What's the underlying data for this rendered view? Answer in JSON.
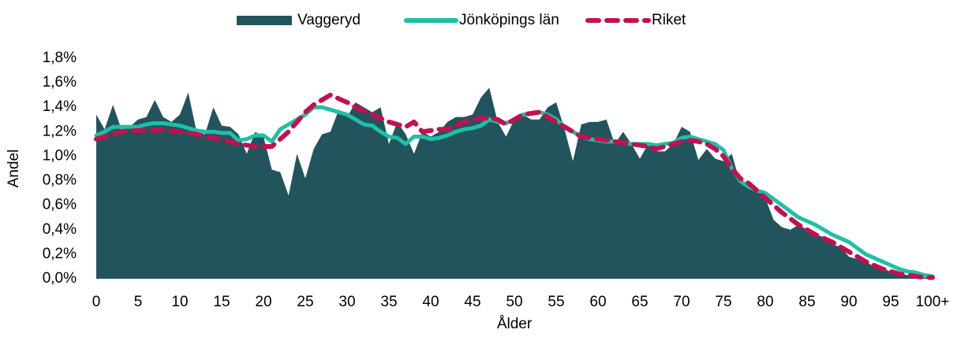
{
  "chart_data": {
    "type": "line",
    "xlabel": "Ålder",
    "ylabel": "Andel",
    "categories": [
      "0",
      null,
      null,
      null,
      null,
      "5",
      null,
      null,
      null,
      null,
      "10",
      null,
      null,
      null,
      null,
      "15",
      null,
      null,
      null,
      null,
      "20",
      null,
      null,
      null,
      null,
      "25",
      null,
      null,
      null,
      null,
      "30",
      null,
      null,
      null,
      null,
      "35",
      null,
      null,
      null,
      null,
      "40",
      null,
      null,
      null,
      null,
      "45",
      null,
      null,
      null,
      null,
      "50",
      null,
      null,
      null,
      null,
      "55",
      null,
      null,
      null,
      null,
      "60",
      null,
      null,
      null,
      null,
      "65",
      null,
      null,
      null,
      null,
      "70",
      null,
      null,
      null,
      null,
      "75",
      null,
      null,
      null,
      null,
      "80",
      null,
      null,
      null,
      null,
      "85",
      null,
      null,
      null,
      null,
      "90",
      null,
      null,
      null,
      null,
      "95",
      null,
      null,
      null,
      null,
      "100+"
    ],
    "ylim": [
      0,
      1.8
    ],
    "yticks": [
      {
        "value": 0,
        "label": "0,0%"
      },
      {
        "value": 0.2,
        "label": "0,2%"
      },
      {
        "value": 0.4,
        "label": "0,4%"
      },
      {
        "value": 0.6,
        "label": "0,6%"
      },
      {
        "value": 0.8,
        "label": "0,8%"
      },
      {
        "value": 1.0,
        "label": "1,0%"
      },
      {
        "value": 1.2,
        "label": "1,2%"
      },
      {
        "value": 1.4,
        "label": "1,4%"
      },
      {
        "value": 1.6,
        "label": "1,6%"
      },
      {
        "value": 1.8,
        "label": "1,8%"
      }
    ],
    "grid": false,
    "legend": "top",
    "series": [
      {
        "name": "Vaggeryd",
        "type": "area",
        "color": "#22545e",
        "values": [
          1.34,
          1.22,
          1.42,
          1.22,
          1.24,
          1.3,
          1.32,
          1.46,
          1.32,
          1.28,
          1.34,
          1.52,
          1.2,
          1.18,
          1.4,
          1.25,
          1.24,
          1.18,
          1.02,
          1.2,
          1.16,
          0.89,
          0.87,
          0.68,
          1.02,
          0.82,
          1.06,
          1.18,
          1.2,
          1.38,
          1.32,
          1.44,
          1.4,
          1.36,
          1.4,
          1.1,
          1.28,
          1.18,
          1.02,
          1.2,
          1.16,
          1.2,
          1.28,
          1.32,
          1.32,
          1.34,
          1.48,
          1.56,
          1.28,
          1.16,
          1.3,
          1.34,
          1.3,
          1.3,
          1.4,
          1.44,
          1.22,
          0.96,
          1.26,
          1.28,
          1.28,
          1.3,
          1.1,
          1.2,
          1.1,
          0.98,
          1.1,
          1.04,
          1.04,
          1.1,
          1.24,
          1.2,
          0.97,
          1.06,
          0.98,
          0.96,
          1.02,
          0.78,
          0.76,
          0.74,
          0.66,
          0.48,
          0.42,
          0.4,
          0.44,
          0.4,
          0.36,
          0.34,
          0.28,
          0.26,
          0.18,
          0.16,
          0.14,
          0.1,
          0.08,
          0.06,
          0.04,
          0.03,
          0.02,
          0.01,
          0.01
        ]
      },
      {
        "name": "Jönköpings län",
        "type": "line",
        "color": "#1fbfa8",
        "values": [
          1.17,
          1.2,
          1.24,
          1.24,
          1.24,
          1.24,
          1.26,
          1.27,
          1.27,
          1.26,
          1.25,
          1.23,
          1.21,
          1.2,
          1.2,
          1.19,
          1.19,
          1.13,
          1.14,
          1.17,
          1.17,
          1.12,
          1.22,
          1.26,
          1.3,
          1.34,
          1.4,
          1.4,
          1.38,
          1.36,
          1.34,
          1.3,
          1.26,
          1.25,
          1.2,
          1.16,
          1.15,
          1.1,
          1.16,
          1.16,
          1.14,
          1.15,
          1.17,
          1.2,
          1.22,
          1.23,
          1.25,
          1.3,
          1.28,
          1.27,
          1.3,
          1.34,
          1.35,
          1.36,
          1.34,
          1.3,
          1.24,
          1.2,
          1.16,
          1.14,
          1.13,
          1.12,
          1.12,
          1.11,
          1.1,
          1.1,
          1.1,
          1.09,
          1.1,
          1.11,
          1.15,
          1.16,
          1.14,
          1.12,
          1.1,
          1.05,
          0.9,
          0.8,
          0.75,
          0.72,
          0.7,
          0.65,
          0.6,
          0.55,
          0.5,
          0.47,
          0.44,
          0.4,
          0.36,
          0.33,
          0.3,
          0.25,
          0.2,
          0.17,
          0.14,
          0.11,
          0.08,
          0.06,
          0.05,
          0.03,
          0.02
        ]
      },
      {
        "name": "Riket",
        "type": "line",
        "style": "dashed",
        "color": "#c4104f",
        "values": [
          1.14,
          1.16,
          1.18,
          1.2,
          1.21,
          1.21,
          1.21,
          1.21,
          1.22,
          1.21,
          1.2,
          1.19,
          1.18,
          1.16,
          1.15,
          1.14,
          1.12,
          1.1,
          1.09,
          1.08,
          1.08,
          1.08,
          1.14,
          1.2,
          1.28,
          1.36,
          1.42,
          1.46,
          1.5,
          1.47,
          1.44,
          1.4,
          1.37,
          1.34,
          1.31,
          1.28,
          1.26,
          1.24,
          1.28,
          1.2,
          1.21,
          1.22,
          1.22,
          1.25,
          1.28,
          1.3,
          1.31,
          1.31,
          1.3,
          1.26,
          1.3,
          1.34,
          1.35,
          1.36,
          1.32,
          1.28,
          1.24,
          1.2,
          1.16,
          1.15,
          1.14,
          1.13,
          1.12,
          1.11,
          1.1,
          1.09,
          1.08,
          1.06,
          1.08,
          1.1,
          1.12,
          1.13,
          1.12,
          1.1,
          1.06,
          1.0,
          0.9,
          0.82,
          0.78,
          0.72,
          0.66,
          0.6,
          0.54,
          0.49,
          0.44,
          0.4,
          0.36,
          0.33,
          0.3,
          0.26,
          0.22,
          0.18,
          0.14,
          0.11,
          0.08,
          0.06,
          0.04,
          0.03,
          0.02,
          0.01,
          0.01
        ]
      }
    ]
  }
}
